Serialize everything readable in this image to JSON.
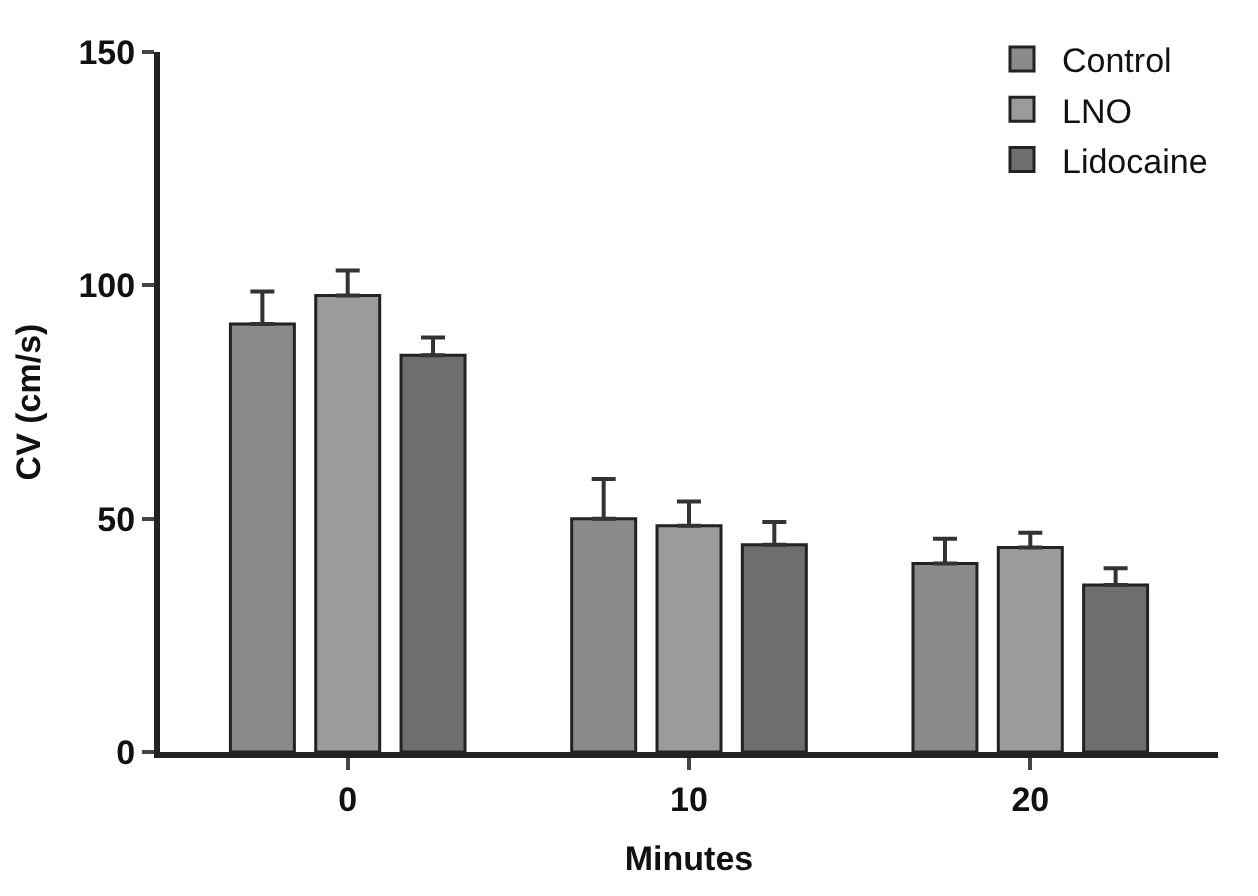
{
  "chart_data": {
    "type": "bar",
    "xlabel": "Minutes",
    "ylabel": "CV (cm/s)",
    "categories": [
      "0",
      "10",
      "20"
    ],
    "series": [
      {
        "name": "Control",
        "color": "#8a8a8a",
        "values": [
          91.7,
          50.0,
          40.4
        ],
        "errors": [
          [
            91.7,
            98.7
          ],
          [
            50.0,
            58.5
          ],
          [
            40.4,
            45.7
          ]
        ]
      },
      {
        "name": "LNO",
        "color": "#9b9b9b",
        "values": [
          97.8,
          48.5,
          43.8
        ],
        "errors": [
          [
            97.8,
            103.2
          ],
          [
            48.5,
            53.7
          ],
          [
            43.8,
            47.0
          ]
        ]
      },
      {
        "name": "Lidocaine",
        "color": "#6e6e6e",
        "values": [
          85.0,
          44.4,
          35.8
        ],
        "errors": [
          [
            85.0,
            88.8
          ],
          [
            44.4,
            49.3
          ],
          [
            35.8,
            39.4
          ]
        ]
      }
    ],
    "ylim": [
      0,
      150
    ],
    "yticks": [
      0,
      50,
      100,
      150
    ],
    "legend": "top right"
  }
}
